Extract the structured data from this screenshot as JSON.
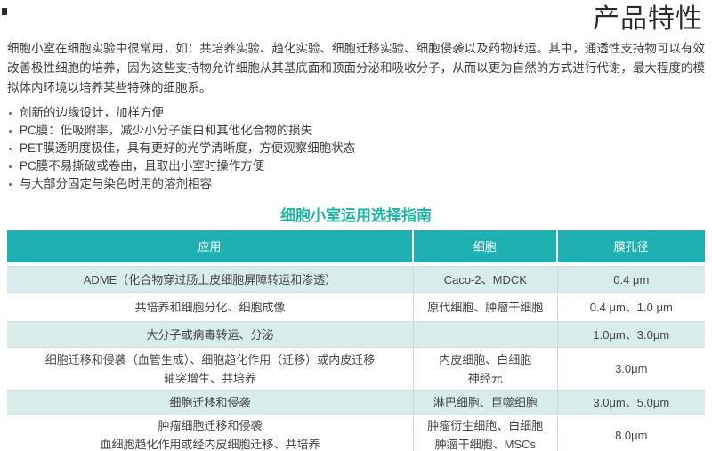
{
  "page": {
    "title": "产品特性",
    "intro": "细胞小室在细胞实验中很常用，如：共培养实验、趋化实验、细胞迁移实验、细胞侵袭以及药物转运。其中，通透性支持物可以有效改善极性细胞的培养，因为这些支持物允许细胞从其基底面和顶面分泌和吸收分子，从而以更为自然的方式进行代谢，最大程度的模拟体内环境以培养某些特殊的细胞系。",
    "bullets": [
      "创新的边缘设计，加样方便",
      "PC膜：低吸附率，减少小分子蛋白和其他化合物的损失",
      "PET膜透明度极佳，具有更好的光学清晰度，方便观察细胞状态",
      "PC膜不易撕破或卷曲，且取出小室时操作方便",
      "与大部分固定与染色时用的溶剂相容"
    ]
  },
  "guide_table": {
    "title": "细胞小室运用选择指南",
    "columns": [
      "应用",
      "细胞",
      "膜孔径"
    ],
    "rows": [
      {
        "application": [
          "ADME（化合物穿过肠上皮细胞屏障转运和渗透）"
        ],
        "cells": [
          "Caco-2、MDCK"
        ],
        "pore": "0.4 μm"
      },
      {
        "application": [
          "共培养和细胞分化、细胞成像"
        ],
        "cells": [
          "原代细胞、肿瘤干细胞"
        ],
        "pore": "0.4 μm、1.0 μm"
      },
      {
        "application": [
          "大分子或病毒转运、分泌"
        ],
        "cells": [
          ""
        ],
        "pore": "1.0μm、3.0μm"
      },
      {
        "application": [
          "细胞迁移和侵袭（血管生成）、细胞趋化作用（迁移）或内皮迁移",
          "轴突增生、共培养"
        ],
        "cells": [
          "内皮细胞、白细胞",
          "神经元"
        ],
        "pore": "3.0μm"
      },
      {
        "application": [
          "细胞迁移和侵袭"
        ],
        "cells": [
          "淋巴细胞、巨噬细胞"
        ],
        "pore": "3.0μm、5.0μm"
      },
      {
        "application": [
          "肿瘤细胞迁移和侵袭",
          "血细胞趋化作用或经内皮细胞迁移、共培养"
        ],
        "cells": [
          "肿瘤衍生细胞、白细胞",
          "肿瘤干细胞、MSCs"
        ],
        "pore": "8.0μm"
      }
    ]
  },
  "colors": {
    "header_teal": "#1fb1b1",
    "row_light_teal": "#d9ecec",
    "accent_title": "#1cb4a4",
    "header_text": "#ffffff"
  }
}
